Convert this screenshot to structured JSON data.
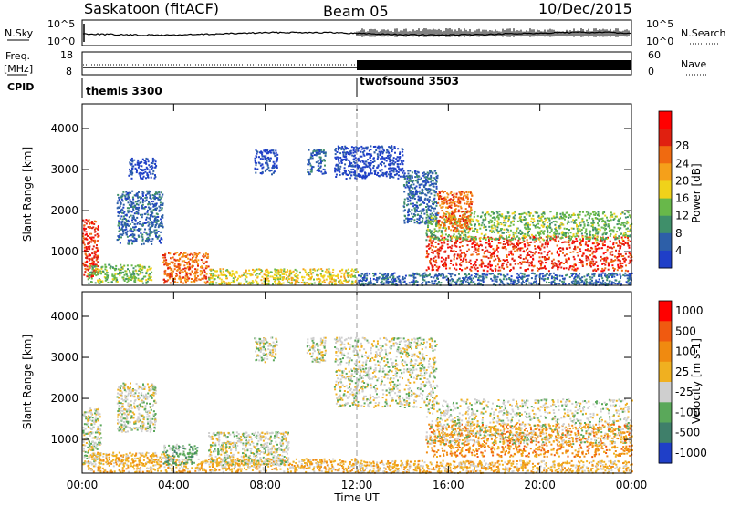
{
  "header": {
    "station": "Saskatoon (fitACF)",
    "beam": "Beam 05",
    "date": "10/Dec/2015"
  },
  "strips": {
    "nsky_label": "N.Sky",
    "nsky_ticks": [
      "10^5",
      "10^0"
    ],
    "nsearch_label": "N.Search",
    "nsearch_ticks": [
      "10^5",
      "10^0"
    ],
    "freq_label_line1": "Freq.",
    "freq_label_line2": "[MHz]",
    "freq_ticks": [
      "18",
      "8"
    ],
    "nave_label": "Nave",
    "nave_ticks": [
      "60",
      "0"
    ],
    "cpid_label": "CPID",
    "cpid_modes": [
      {
        "name": "themis 3300",
        "start_h": 0,
        "end_h": 12
      },
      {
        "name": "twofsound 3503",
        "start_h": 12,
        "end_h": 24
      }
    ]
  },
  "colors": {
    "power": [
      "#1f3fc8",
      "#2d5fa8",
      "#3f8f6a",
      "#68b84a",
      "#f0d21a",
      "#f5a01a",
      "#f06a10",
      "#e02010",
      "#ff0000"
    ],
    "velocity": [
      "#1f3fc8",
      "#3f7f6a",
      "#5aa85a",
      "#cfcfcf",
      "#f0b020",
      "#f08a10",
      "#f05a10",
      "#ff0000"
    ]
  },
  "chart_data": [
    {
      "type": "heatmap",
      "ylabel": "Slant Range [km]",
      "xlabel": "",
      "y_ticks": [
        1000,
        2000,
        3000,
        4000
      ],
      "ylim": [
        180,
        4600
      ],
      "xlim": [
        0,
        24
      ],
      "x_ticks": [
        "00:00",
        "04:00",
        "08:00",
        "12:00",
        "16:00",
        "20:00",
        "00:00"
      ],
      "colorbar": {
        "label": "Power [dB]",
        "ticks": [
          "4",
          "8",
          "12",
          "16",
          "20",
          "24",
          "28"
        ]
      },
      "scatter_regions": [
        {
          "t0": 0.0,
          "t1": 0.7,
          "r0": 400,
          "r1": 1800,
          "level": 7
        },
        {
          "t0": 0.2,
          "t1": 3.0,
          "r0": 250,
          "r1": 700,
          "level": 3
        },
        {
          "t0": 1.5,
          "t1": 3.5,
          "r0": 1200,
          "r1": 2500,
          "level": 1
        },
        {
          "t0": 2.0,
          "t1": 3.2,
          "r0": 2800,
          "r1": 3300,
          "level": 0
        },
        {
          "t0": 3.5,
          "t1": 5.5,
          "r0": 250,
          "r1": 1000,
          "level": 6
        },
        {
          "t0": 5.5,
          "t1": 12.0,
          "r0": 220,
          "r1": 600,
          "level": 4
        },
        {
          "t0": 7.5,
          "t1": 8.5,
          "r0": 2900,
          "r1": 3500,
          "level": 0
        },
        {
          "t0": 9.8,
          "t1": 10.6,
          "r0": 2900,
          "r1": 3500,
          "level": 1
        },
        {
          "t0": 11.0,
          "t1": 14.0,
          "r0": 2800,
          "r1": 3600,
          "level": 0
        },
        {
          "t0": 14.0,
          "t1": 15.5,
          "r0": 1700,
          "r1": 3000,
          "level": 1
        },
        {
          "t0": 15.0,
          "t1": 24.0,
          "r0": 550,
          "r1": 1400,
          "level": 7
        },
        {
          "t0": 15.0,
          "t1": 24.0,
          "r0": 1300,
          "r1": 2000,
          "level": 3
        },
        {
          "t0": 15.5,
          "t1": 17.0,
          "r0": 1500,
          "r1": 2500,
          "level": 6
        },
        {
          "t0": 12.0,
          "t1": 24.0,
          "r0": 200,
          "r1": 500,
          "level": 1
        }
      ]
    },
    {
      "type": "heatmap",
      "ylabel": "Slant Range [km]",
      "xlabel": "Time UT",
      "y_ticks": [
        1000,
        2000,
        3000,
        4000
      ],
      "ylim": [
        180,
        4600
      ],
      "xlim": [
        0,
        24
      ],
      "x_ticks": [
        "00:00",
        "04:00",
        "08:00",
        "12:00",
        "16:00",
        "20:00",
        "00:00"
      ],
      "colorbar": {
        "label": "Velocity [m s-1]",
        "ticks": [
          "1000",
          "500",
          "100",
          "25",
          "-25",
          "-100",
          "-500",
          "-1000"
        ]
      },
      "scatter_regions": [
        {
          "t0": 0.0,
          "t1": 0.8,
          "r0": 400,
          "r1": 1800,
          "level": 3
        },
        {
          "t0": 0.2,
          "t1": 4.0,
          "r0": 220,
          "r1": 700,
          "level": 4
        },
        {
          "t0": 1.5,
          "t1": 3.2,
          "r0": 1200,
          "r1": 2400,
          "level": 3
        },
        {
          "t0": 4.0,
          "t1": 12.0,
          "r0": 220,
          "r1": 550,
          "level": 4
        },
        {
          "t0": 5.5,
          "t1": 9.0,
          "r0": 400,
          "r1": 1200,
          "level": 3
        },
        {
          "t0": 3.5,
          "t1": 5.0,
          "r0": 400,
          "r1": 900,
          "level": 2
        },
        {
          "t0": 7.5,
          "t1": 8.5,
          "r0": 2900,
          "r1": 3500,
          "level": 3
        },
        {
          "t0": 9.8,
          "t1": 10.6,
          "r0": 2900,
          "r1": 3500,
          "level": 3
        },
        {
          "t0": 11.0,
          "t1": 15.5,
          "r0": 1800,
          "r1": 3500,
          "level": 3
        },
        {
          "t0": 15.0,
          "t1": 24.0,
          "r0": 600,
          "r1": 1400,
          "level": 5
        },
        {
          "t0": 15.0,
          "t1": 24.0,
          "r0": 900,
          "r1": 2000,
          "level": 3
        },
        {
          "t0": 12.0,
          "t1": 24.0,
          "r0": 200,
          "r1": 500,
          "level": 4
        }
      ]
    }
  ]
}
